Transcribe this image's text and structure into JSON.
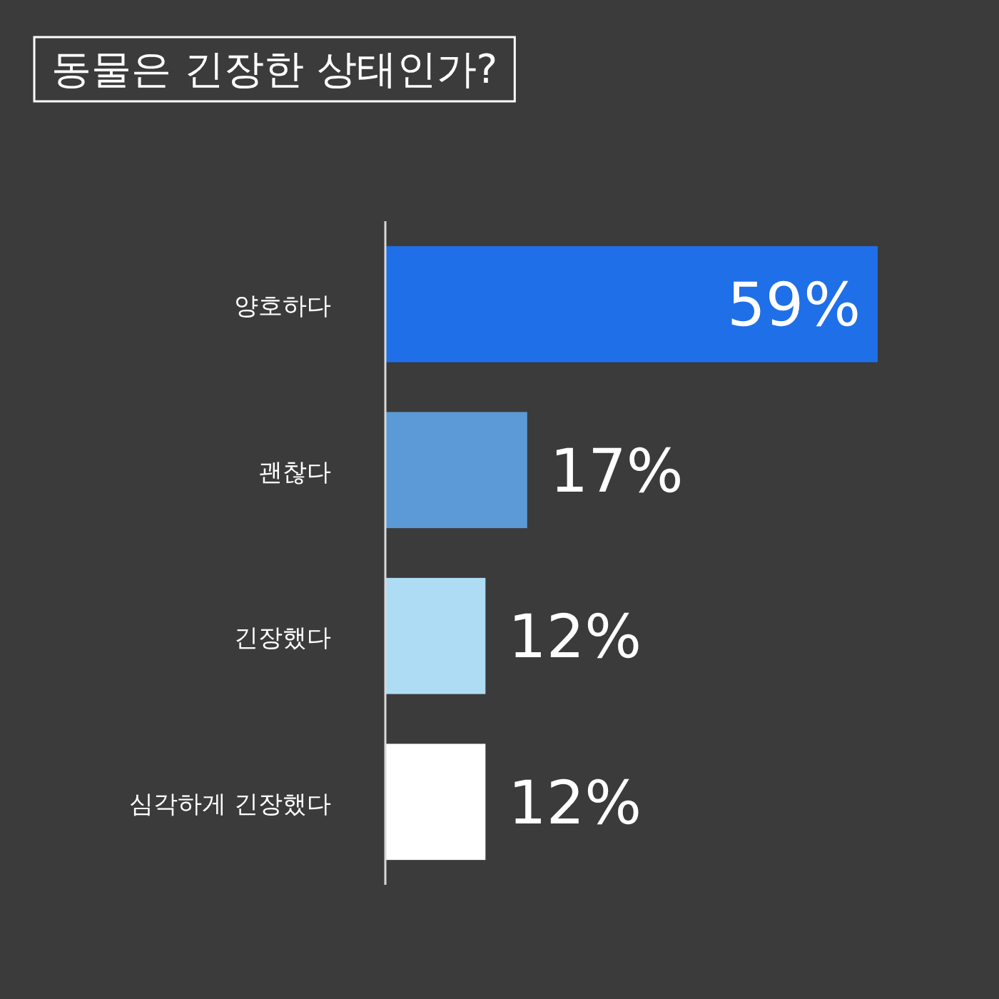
{
  "chart_data": {
    "type": "bar",
    "orientation": "horizontal",
    "title": "동물은 긴장한 상태인가?",
    "categories": [
      "양호하다",
      "괜찮다",
      "긴장했다",
      "심각하게 긴장했다"
    ],
    "values": [
      59,
      17,
      12,
      12
    ],
    "colors": [
      "#1f6fe8",
      "#5b9ad6",
      "#aedcf5",
      "#ffffff"
    ],
    "value_labels": [
      "59%",
      "17%",
      "12%",
      "12%"
    ]
  }
}
